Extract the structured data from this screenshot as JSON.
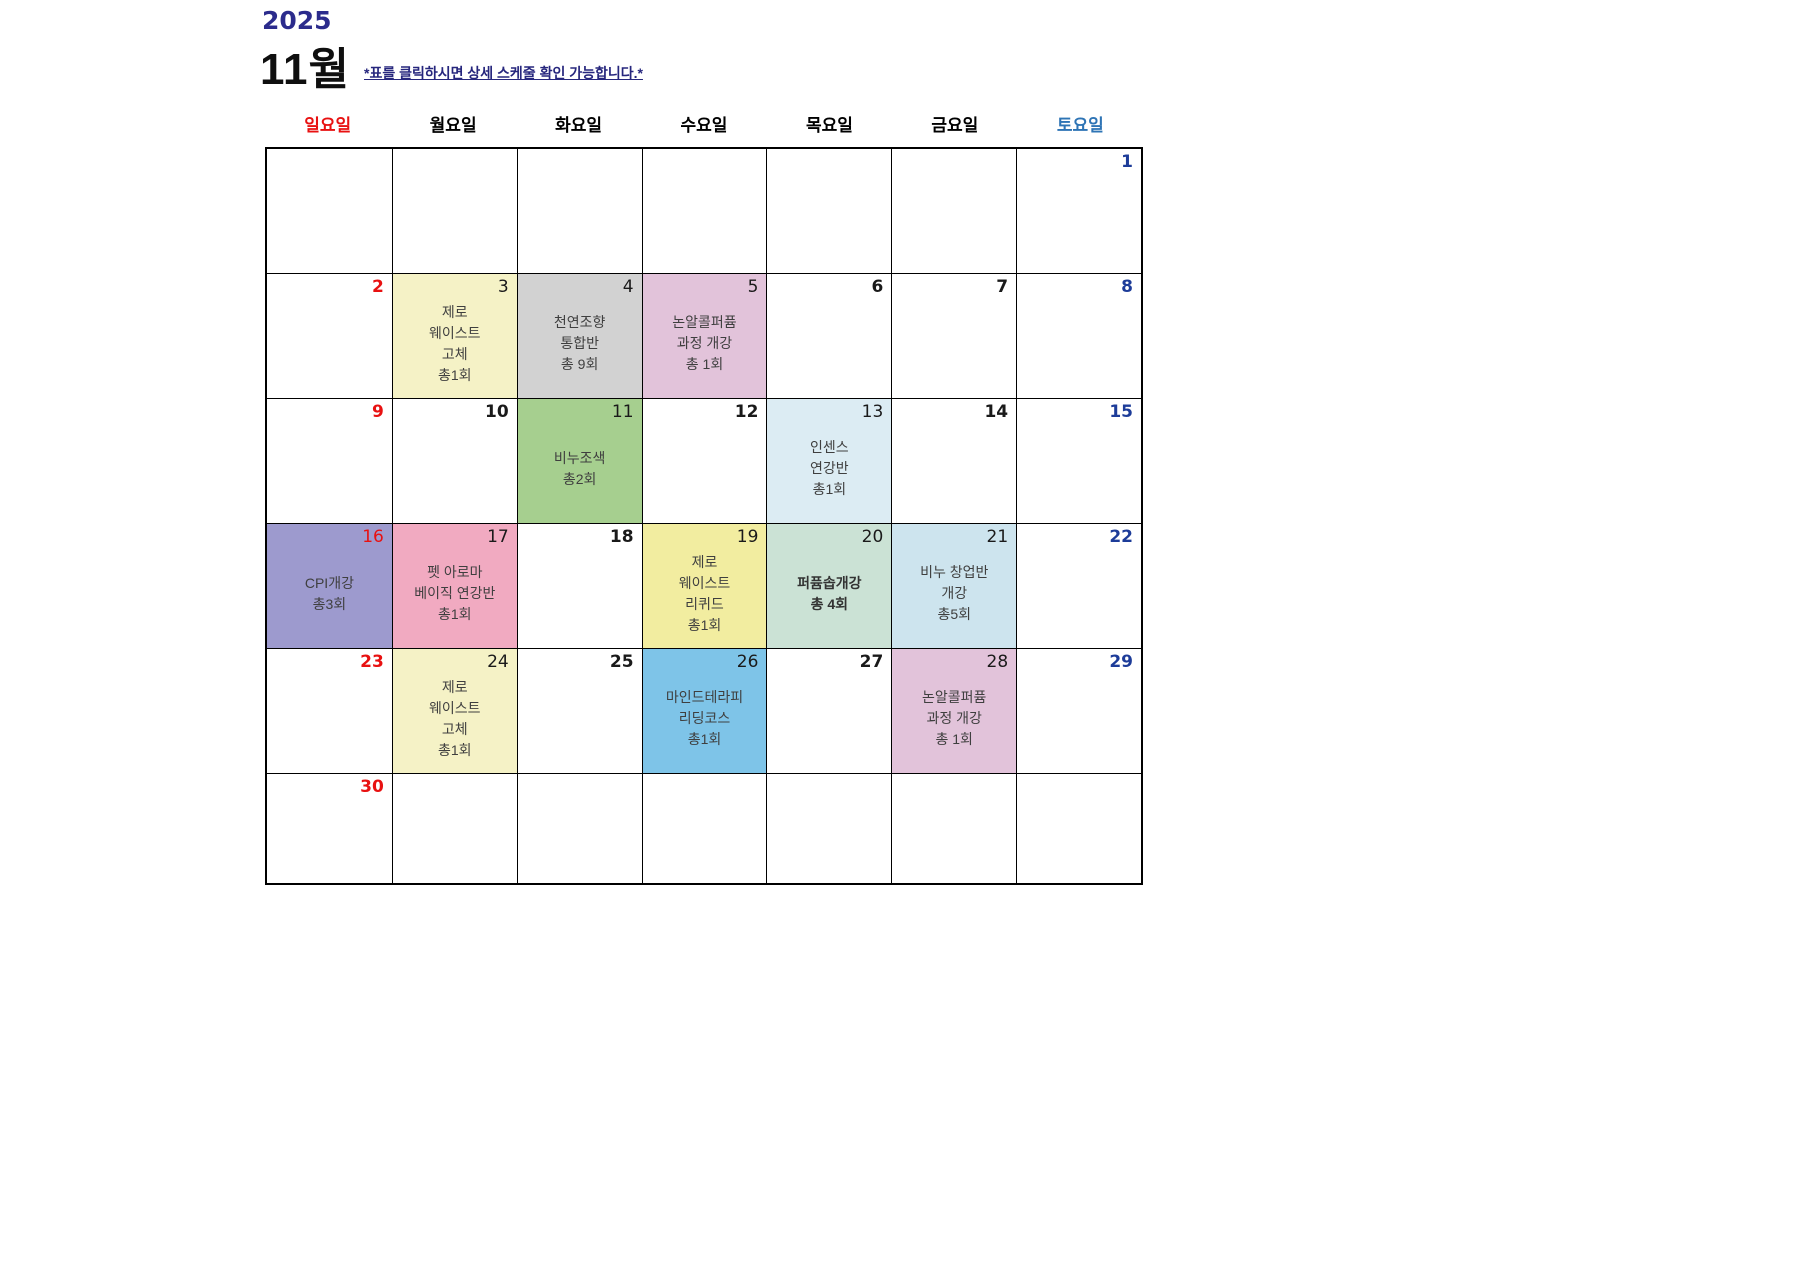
{
  "title": {
    "year": "2025",
    "month": "11월",
    "note": "*표를 클릭하시면 상세 스케줄 확인 가능합니다.*"
  },
  "colors": {
    "year_text": "#2b2b8c",
    "month_text": "#0f0f0f",
    "note_text": "#26267d",
    "grid_line": "#000000",
    "num": {
      "red": "#e81111",
      "blue": "#1d3c99",
      "black": "#1a1a1a"
    },
    "event_text": "#3f3f3f"
  },
  "weekdays": [
    {
      "label": "일요일",
      "color": "#e81111"
    },
    {
      "label": "월요일",
      "color": "#000000"
    },
    {
      "label": "화요일",
      "color": "#000000"
    },
    {
      "label": "수요일",
      "color": "#000000"
    },
    {
      "label": "목요일",
      "color": "#000000"
    },
    {
      "label": "금요일",
      "color": "#000000"
    },
    {
      "label": "토요일",
      "color": "#2e74b5"
    }
  ],
  "calendar": {
    "weeks": [
      [
        {
          "day": "",
          "num_color": "black",
          "num_bold": false,
          "bg": "",
          "lines": []
        },
        {
          "day": "",
          "num_color": "black",
          "num_bold": false,
          "bg": "",
          "lines": []
        },
        {
          "day": "",
          "num_color": "black",
          "num_bold": false,
          "bg": "",
          "lines": []
        },
        {
          "day": "",
          "num_color": "black",
          "num_bold": false,
          "bg": "",
          "lines": []
        },
        {
          "day": "",
          "num_color": "black",
          "num_bold": false,
          "bg": "",
          "lines": []
        },
        {
          "day": "",
          "num_color": "black",
          "num_bold": false,
          "bg": "",
          "lines": []
        },
        {
          "day": "1",
          "num_color": "blue",
          "num_bold": true,
          "bg": "",
          "lines": []
        }
      ],
      [
        {
          "day": "2",
          "num_color": "red",
          "num_bold": true,
          "bg": "",
          "lines": []
        },
        {
          "day": "3",
          "num_color": "black",
          "num_bold": false,
          "bg": "#f5f2c6",
          "lines": [
            "제로",
            "웨이스트",
            "고체",
            "총1회"
          ]
        },
        {
          "day": "4",
          "num_color": "black",
          "num_bold": false,
          "bg": "#d2d2d2",
          "lines": [
            "천연조향",
            "통합반",
            "총 9회"
          ]
        },
        {
          "day": "5",
          "num_color": "black",
          "num_bold": false,
          "bg": "#e2c3da",
          "lines": [
            "논알콜퍼퓸",
            "과정 개강",
            "총 1회"
          ]
        },
        {
          "day": "6",
          "num_color": "black",
          "num_bold": true,
          "bg": "",
          "lines": []
        },
        {
          "day": "7",
          "num_color": "black",
          "num_bold": true,
          "bg": "",
          "lines": []
        },
        {
          "day": "8",
          "num_color": "blue",
          "num_bold": true,
          "bg": "",
          "lines": []
        }
      ],
      [
        {
          "day": "9",
          "num_color": "red",
          "num_bold": true,
          "bg": "",
          "lines": []
        },
        {
          "day": "10",
          "num_color": "black",
          "num_bold": true,
          "bg": "",
          "lines": []
        },
        {
          "day": "11",
          "num_color": "black",
          "num_bold": false,
          "bg": "#a6cf8f",
          "lines": [
            "비누조색",
            "총2회"
          ]
        },
        {
          "day": "12",
          "num_color": "black",
          "num_bold": true,
          "bg": "",
          "lines": []
        },
        {
          "day": "13",
          "num_color": "black",
          "num_bold": false,
          "bg": "#dcecf3",
          "lines": [
            "인센스",
            "연강반",
            "총1회"
          ]
        },
        {
          "day": "14",
          "num_color": "black",
          "num_bold": true,
          "bg": "",
          "lines": []
        },
        {
          "day": "15",
          "num_color": "blue",
          "num_bold": true,
          "bg": "",
          "lines": []
        }
      ],
      [
        {
          "day": "16",
          "num_color": "red",
          "num_bold": false,
          "bg": "#9d9ace",
          "lines": [
            "CPI개강",
            "총3회"
          ]
        },
        {
          "day": "17",
          "num_color": "black",
          "num_bold": false,
          "bg": "#f1aac1",
          "lines": [
            "펫 아로마",
            "베이직 연강반",
            "총1회"
          ]
        },
        {
          "day": "18",
          "num_color": "black",
          "num_bold": true,
          "bg": "",
          "lines": []
        },
        {
          "day": "19",
          "num_color": "black",
          "num_bold": false,
          "bg": "#f2eda0",
          "lines": [
            "제로",
            "웨이스트",
            "리퀴드",
            "총1회"
          ]
        },
        {
          "day": "20",
          "num_color": "black",
          "num_bold": false,
          "bg": "#cbe2d5",
          "lines": [
            "퍼퓸솝개강",
            "총 4회"
          ],
          "text_bold": true
        },
        {
          "day": "21",
          "num_color": "black",
          "num_bold": false,
          "bg": "#cde4ee",
          "lines": [
            "비누 창업반",
            "개강",
            "총5회"
          ]
        },
        {
          "day": "22",
          "num_color": "blue",
          "num_bold": true,
          "bg": "",
          "lines": []
        }
      ],
      [
        {
          "day": "23",
          "num_color": "red",
          "num_bold": true,
          "bg": "",
          "lines": []
        },
        {
          "day": "24",
          "num_color": "black",
          "num_bold": false,
          "bg": "#f5f2c6",
          "lines": [
            "제로",
            "웨이스트",
            "고체",
            "총1회"
          ]
        },
        {
          "day": "25",
          "num_color": "black",
          "num_bold": true,
          "bg": "",
          "lines": []
        },
        {
          "day": "26",
          "num_color": "black",
          "num_bold": false,
          "bg": "#7ec4e8",
          "lines": [
            "마인드테라피",
            "리딩코스",
            "총1회"
          ]
        },
        {
          "day": "27",
          "num_color": "black",
          "num_bold": true,
          "bg": "",
          "lines": []
        },
        {
          "day": "28",
          "num_color": "black",
          "num_bold": false,
          "bg": "#e2c3da",
          "lines": [
            "논알콜퍼퓸",
            "과정 개강",
            "총 1회"
          ]
        },
        {
          "day": "29",
          "num_color": "blue",
          "num_bold": true,
          "bg": "",
          "lines": []
        }
      ],
      [
        {
          "day": "30",
          "num_color": "red",
          "num_bold": true,
          "bg": "",
          "lines": []
        },
        {
          "day": "",
          "num_color": "black",
          "num_bold": false,
          "bg": "",
          "lines": []
        },
        {
          "day": "",
          "num_color": "black",
          "num_bold": false,
          "bg": "",
          "lines": []
        },
        {
          "day": "",
          "num_color": "black",
          "num_bold": false,
          "bg": "",
          "lines": []
        },
        {
          "day": "",
          "num_color": "black",
          "num_bold": false,
          "bg": "",
          "lines": []
        },
        {
          "day": "",
          "num_color": "black",
          "num_bold": false,
          "bg": "",
          "lines": []
        },
        {
          "day": "",
          "num_color": "black",
          "num_bold": false,
          "bg": "",
          "lines": []
        }
      ]
    ]
  }
}
